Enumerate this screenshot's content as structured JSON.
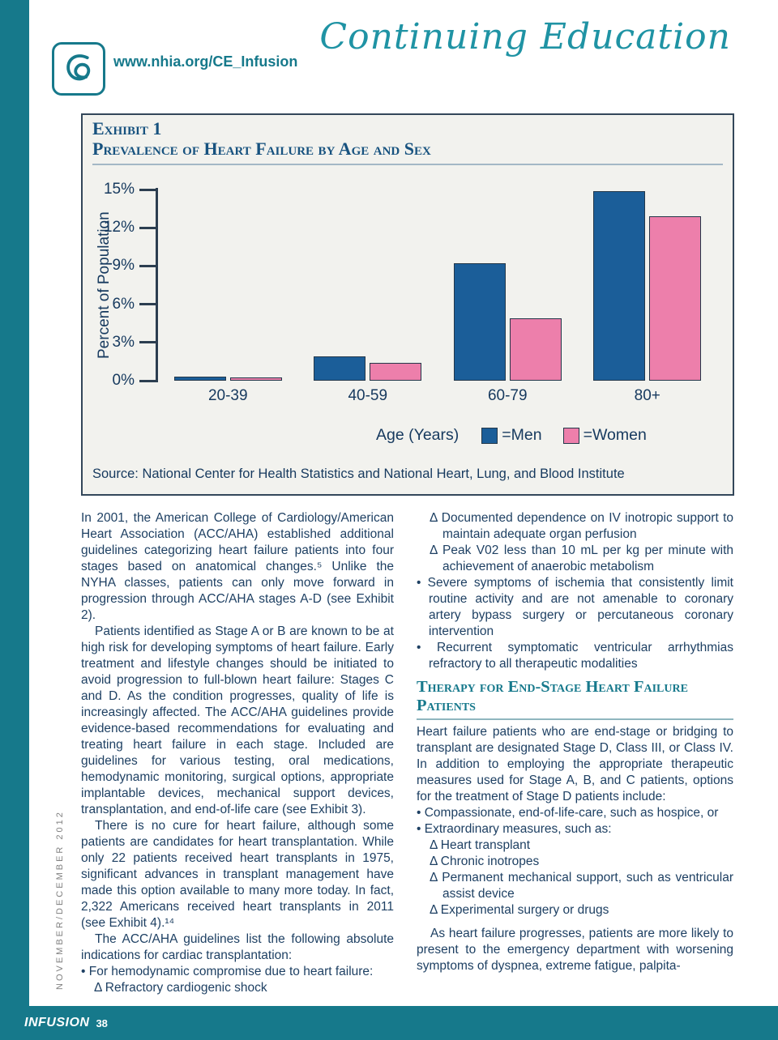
{
  "colors": {
    "teal": "#16798b",
    "banner_teal": "#1f93a4",
    "heading_navy": "#17527f",
    "body_text": "#1e4063",
    "men_blue": "#1b5e99",
    "women_pink": "#ed7fab"
  },
  "header": {
    "url": "www.nhia.org/CE_Infusion",
    "banner": "Continuing Education",
    "logo_icon": "nhia-script-logo"
  },
  "exhibit": {
    "label": "Exhibit 1",
    "title": "Prevalence of Heart Failure by Age and Sex",
    "source": "Source: National Center for Health Statistics and National Heart, Lung, and Blood Institute"
  },
  "chart_data": {
    "type": "bar",
    "title": "Prevalence of Heart Failure by Age and Sex",
    "categories": [
      "20-39",
      "40-59",
      "60-79",
      "80+"
    ],
    "series": [
      {
        "name": "Men",
        "color": "#1b5e99",
        "values": [
          0.3,
          1.9,
          9.2,
          14.9
        ]
      },
      {
        "name": "Women",
        "color": "#ed7fab",
        "values": [
          0.2,
          1.4,
          4.9,
          12.9
        ]
      }
    ],
    "xlabel": "Age (Years)",
    "ylabel": "Percent of Population",
    "ylim": [
      0,
      15
    ],
    "ytick_labels": [
      "15%",
      "12%",
      "9%",
      "6%",
      "3%",
      "0%"
    ],
    "legend": [
      {
        "label": "=Men",
        "color": "#1b5e99"
      },
      {
        "label": "=Women",
        "color": "#ed7fab"
      }
    ],
    "grid": false,
    "legend_position": "bottom-right"
  },
  "left_column": {
    "p1": "In 2001, the American College of Cardiology/American Heart Association (ACC/AHA) established additional guidelines categorizing heart failure patients into four stages based on anatomical changes.⁵ Unlike the NYHA classes, patients can only move forward in progression through ACC/AHA stages A-D (see Exhibit 2).",
    "p2": "Patients identified as Stage A or B are known to be at high risk for developing symptoms of heart failure. Early treatment and lifestyle changes should be initiated to avoid progression to full-blown heart failure: Stages C and D. As the condition progresses, quality of life is increasingly affected. The ACC/AHA guidelines provide evidence-based recommendations for evaluating and treating heart failure in each stage. Included are guidelines for various testing, oral medications, hemodynamic monitoring, surgical options, appropriate implantable devices, mechanical support devices, transplantation, and end-of-life care (see Exhibit 3).",
    "p3": "There is no cure for heart failure, although some patients are candidates for heart transplantation. While only 22 patients received heart transplants in 1975, significant advances in transplant management have made this option available to many more today. In fact, 2,322 Americans received heart transplants in 2011 (see Exhibit 4).¹⁴",
    "p4": "The ACC/AHA guidelines list the following absolute indications for cardiac transplantation:",
    "b1": "• For hemodynamic compromise due to heart failure:",
    "d1": "Δ Refractory cardiogenic shock"
  },
  "right_column": {
    "d1": "Δ Documented dependence on IV inotropic support to maintain adequate organ perfusion",
    "d2": "Δ Peak V02 less than 10 mL per kg per minute with achievement of anaerobic metabolism",
    "b1": "• Severe symptoms of ischemia that consistently limit routine activity and are not amenable to coronary artery bypass surgery or percutaneous coronary intervention",
    "b2": "• Recurrent symptomatic ventricular arrhythmias refractory to all therapeutic modalities",
    "heading": "Therapy for End-Stage Heart Failure Patients",
    "p1": "Heart failure patients who are end-stage or bridging to transplant are designated Stage D, Class III, or Class IV. In addition to employing the appropriate therapeutic measures used for Stage A, B, and C patients, options for the treatment of Stage D patients include:",
    "b3": "• Compassionate, end-of-life-care, such as hospice, or",
    "b4": "• Extraordinary measures, such as:",
    "d3": "Δ Heart transplant",
    "d4": "Δ Chronic inotropes",
    "d5": "Δ Permanent mechanical support, such as ventricular assist device",
    "d6": "Δ Experimental surgery or drugs",
    "p2": "As heart failure progresses, patients are more likely to present to the emergency department with worsening symptoms of dyspnea, extreme fatigue, palpita-"
  },
  "sidebar": {
    "date": "NOVEMBER/DECEMBER 2012"
  },
  "footer": {
    "brand": "INFUSION",
    "page": "38"
  }
}
